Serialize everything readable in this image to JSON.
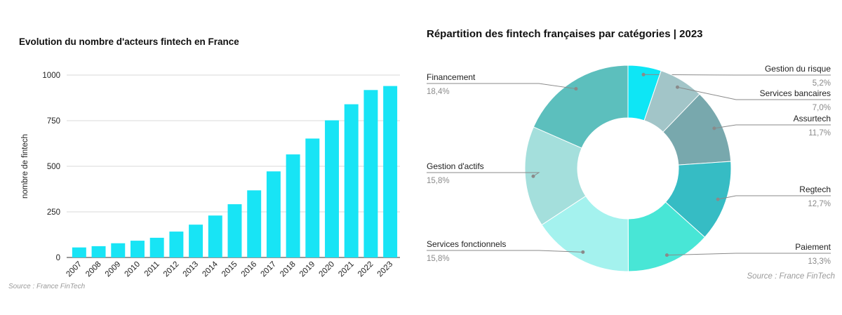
{
  "bar_chart": {
    "title": "Evolution du nombre d'acteurs fintech en France",
    "source": "Source : France FinTech"
  },
  "donut_chart": {
    "title": "Répartition des fintech françaises par catégories | 2023",
    "source": "Source : France FinTech"
  },
  "chart_data": [
    {
      "type": "bar",
      "title": "Evolution du nombre d'acteurs fintech en France",
      "xlabel": "",
      "ylabel": "nombre de fintech",
      "categories": [
        "2007",
        "2008",
        "2009",
        "2010",
        "2011",
        "2012",
        "2013",
        "2014",
        "2015",
        "2016",
        "2017",
        "2018",
        "2019",
        "2020",
        "2021",
        "2022",
        "2023"
      ],
      "values": [
        55,
        62,
        78,
        92,
        108,
        142,
        180,
        230,
        292,
        368,
        472,
        565,
        652,
        752,
        840,
        918,
        940
      ],
      "ylim": [
        0,
        1000
      ],
      "yticks": [
        "0",
        "250",
        "500",
        "750",
        "1000"
      ],
      "grid": true,
      "color": "#18e4f5"
    },
    {
      "type": "pie",
      "donut": true,
      "title": "Répartition des fintech françaises par catégories | 2023",
      "slices": [
        {
          "label": "Gestion du risque",
          "value": 5.2,
          "value_text": "5,2%",
          "color": "#0ee6f5"
        },
        {
          "label": "Services bancaires",
          "value": 7.0,
          "value_text": "7,0%",
          "color": "#a2c5c8"
        },
        {
          "label": "Assurtech",
          "value": 11.7,
          "value_text": "11,7%",
          "color": "#78a8ad"
        },
        {
          "label": "Regtech",
          "value": 12.7,
          "value_text": "12,7%",
          "color": "#36bcc4"
        },
        {
          "label": "Paiement",
          "value": 13.3,
          "value_text": "13,3%",
          "color": "#48e6d6"
        },
        {
          "label": "Services fonctionnels",
          "value": 15.8,
          "value_text": "15,8%",
          "color": "#a4f2ee"
        },
        {
          "label": "Gestion d'actifs",
          "value": 15.8,
          "value_text": "15,8%",
          "color": "#a4dfdc"
        },
        {
          "label": "Financement",
          "value": 18.4,
          "value_text": "18,4%",
          "color": "#5cbfbd"
        }
      ]
    }
  ]
}
